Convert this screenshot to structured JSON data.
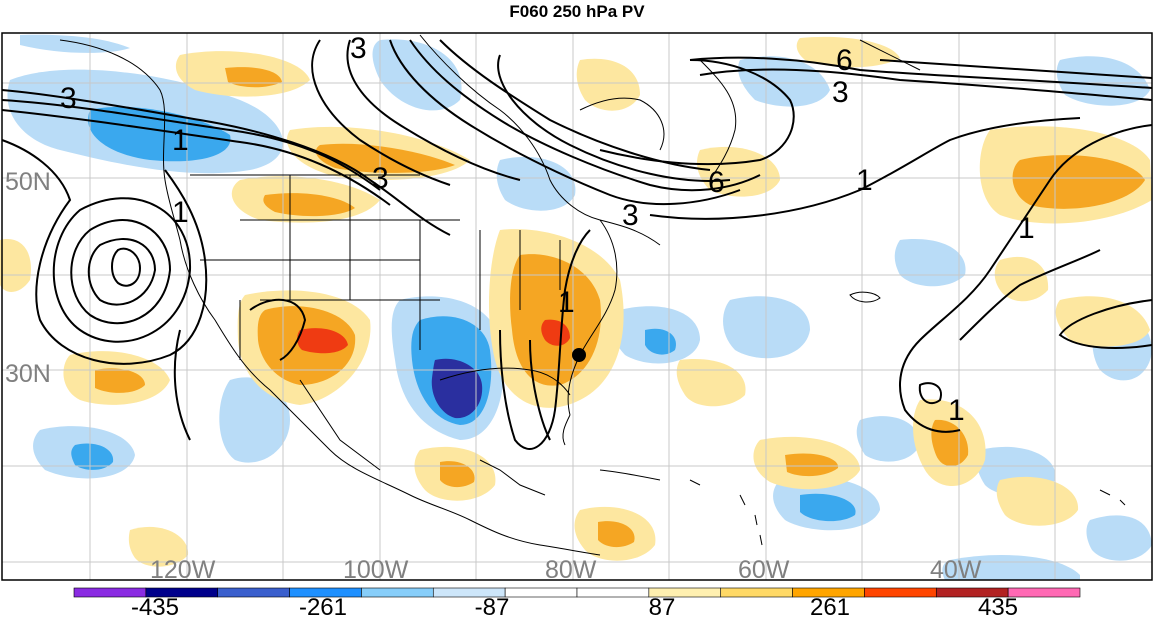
{
  "title": "F060 250 hPa PV",
  "lat_labels": [
    "50N",
    "30N"
  ],
  "lon_labels": [
    "120W",
    "100W",
    "80W",
    "60W",
    "40W"
  ],
  "contour_labels": [
    "3",
    "1",
    "3",
    "3",
    "1",
    "3",
    "6",
    "6",
    "3",
    "1",
    "1",
    "1",
    "1"
  ],
  "colorbar": {
    "labels": [
      "-435",
      "-261",
      "-87",
      "87",
      "261",
      "435"
    ],
    "colors": [
      "#8a2be2",
      "#00008b",
      "#3a5fcd",
      "#1e90ff",
      "#87cefa",
      "#cde6fa",
      "#ffffff",
      "#ffffff",
      "#fff0b0",
      "#ffd966",
      "#ffa500",
      "#ff4500",
      "#b22222",
      "#ff69b4"
    ]
  },
  "colors": {
    "pos_weak": "#fde7a0",
    "pos_mid": "#f5a623",
    "pos_strong": "#ef3b12",
    "neg_weak": "#b9dcf7",
    "neg_mid": "#3aa8ee",
    "neg_strong": "#2a2f9f"
  },
  "marker": "point-marker"
}
